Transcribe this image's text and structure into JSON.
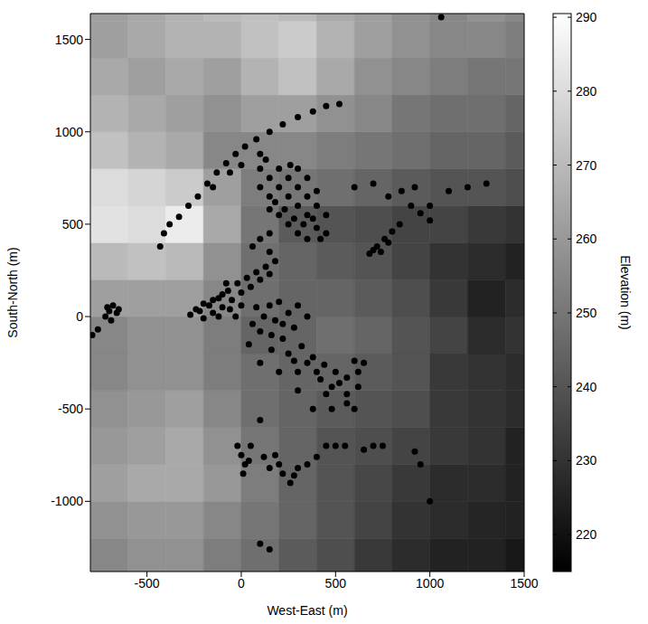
{
  "chart_data": {
    "type": "scatter",
    "xlabel": "West-East (m)",
    "ylabel": "South-North (m)",
    "xlim": [
      -800,
      1500
    ],
    "ylim": [
      -1380,
      1640
    ],
    "xticks": [
      -500,
      0,
      500,
      1000,
      1500
    ],
    "yticks": [
      -1000,
      -500,
      0,
      500,
      1000,
      1500
    ],
    "grid": false,
    "color": "#000000",
    "marker": "circle",
    "points": [
      [
        -720,
        0
      ],
      [
        -700,
        30
      ],
      [
        -680,
        60
      ],
      [
        -660,
        20
      ],
      [
        -690,
        -20
      ],
      [
        -650,
        40
      ],
      [
        -710,
        50
      ],
      [
        -760,
        -70
      ],
      [
        -790,
        -100
      ],
      [
        -430,
        380
      ],
      [
        -410,
        450
      ],
      [
        -380,
        500
      ],
      [
        -330,
        540
      ],
      [
        -280,
        600
      ],
      [
        -230,
        650
      ],
      [
        -180,
        720
      ],
      [
        -130,
        780
      ],
      [
        -80,
        830
      ],
      [
        -30,
        880
      ],
      [
        20,
        920
      ],
      [
        80,
        960
      ],
      [
        150,
        1000
      ],
      [
        220,
        1040
      ],
      [
        300,
        1080
      ],
      [
        380,
        1110
      ],
      [
        450,
        1140
      ],
      [
        520,
        1150
      ],
      [
        0,
        820
      ],
      [
        100,
        880
      ],
      [
        -150,
        700
      ],
      [
        -60,
        780
      ],
      [
        100,
        800
      ],
      [
        150,
        750
      ],
      [
        200,
        700
      ],
      [
        250,
        650
      ],
      [
        300,
        600
      ],
      [
        350,
        550
      ],
      [
        400,
        480
      ],
      [
        450,
        450
      ],
      [
        150,
        650
      ],
      [
        200,
        550
      ],
      [
        250,
        500
      ],
      [
        300,
        450
      ],
      [
        350,
        420
      ],
      [
        200,
        800
      ],
      [
        250,
        750
      ],
      [
        300,
        700
      ],
      [
        350,
        650
      ],
      [
        400,
        600
      ],
      [
        450,
        550
      ],
      [
        300,
        800
      ],
      [
        350,
        750
      ],
      [
        400,
        680
      ],
      [
        100,
        700
      ],
      [
        150,
        580
      ],
      [
        180,
        620
      ],
      [
        230,
        580
      ],
      [
        280,
        530
      ],
      [
        330,
        500
      ],
      [
        380,
        530
      ],
      [
        420,
        420
      ],
      [
        260,
        820
      ],
      [
        130,
        850
      ],
      [
        680,
        340
      ],
      [
        720,
        380
      ],
      [
        760,
        420
      ],
      [
        800,
        460
      ],
      [
        840,
        500
      ],
      [
        740,
        350
      ],
      [
        700,
        360
      ],
      [
        780,
        400
      ],
      [
        600,
        700
      ],
      [
        700,
        720
      ],
      [
        780,
        650
      ],
      [
        850,
        680
      ],
      [
        900,
        600
      ],
      [
        950,
        560
      ],
      [
        1000,
        600
      ],
      [
        1100,
        680
      ],
      [
        1200,
        700
      ],
      [
        1300,
        720
      ],
      [
        920,
        700
      ],
      [
        1000,
        520
      ],
      [
        150,
        450
      ],
      [
        100,
        420
      ],
      [
        150,
        350
      ],
      [
        60,
        380
      ],
      [
        -270,
        10
      ],
      [
        -220,
        30
      ],
      [
        -170,
        60
      ],
      [
        -120,
        100
      ],
      [
        -70,
        140
      ],
      [
        -20,
        180
      ],
      [
        30,
        210
      ],
      [
        80,
        240
      ],
      [
        130,
        270
      ],
      [
        180,
        300
      ],
      [
        -200,
        -10
      ],
      [
        -150,
        20
      ],
      [
        -100,
        50
      ],
      [
        -50,
        90
      ],
      [
        0,
        130
      ],
      [
        50,
        160
      ],
      [
        -150,
        90
      ],
      [
        -80,
        180
      ],
      [
        -30,
        0
      ],
      [
        0,
        60
      ],
      [
        -100,
        120
      ],
      [
        -200,
        70
      ],
      [
        -240,
        40
      ],
      [
        -60,
        40
      ],
      [
        -120,
        0
      ],
      [
        100,
        200
      ],
      [
        150,
        230
      ],
      [
        80,
        50
      ],
      [
        150,
        60
      ],
      [
        200,
        80
      ],
      [
        120,
        0
      ],
      [
        180,
        -20
      ],
      [
        250,
        20
      ],
      [
        300,
        60
      ],
      [
        100,
        -80
      ],
      [
        160,
        -100
      ],
      [
        220,
        -120
      ],
      [
        280,
        -60
      ],
      [
        320,
        -160
      ],
      [
        380,
        -220
      ],
      [
        440,
        -260
      ],
      [
        500,
        -300
      ],
      [
        560,
        -330
      ],
      [
        620,
        -300
      ],
      [
        620,
        -380
      ],
      [
        560,
        -420
      ],
      [
        480,
        -380
      ],
      [
        400,
        -300
      ],
      [
        350,
        -250
      ],
      [
        250,
        -200
      ],
      [
        300,
        -300
      ],
      [
        650,
        -250
      ],
      [
        40,
        -150
      ],
      [
        100,
        -250
      ],
      [
        200,
        -300
      ],
      [
        450,
        -420
      ],
      [
        60,
        -40
      ],
      [
        220,
        -40
      ],
      [
        350,
        0
      ],
      [
        160,
        -180
      ],
      [
        280,
        -240
      ],
      [
        420,
        -340
      ],
      [
        520,
        -360
      ],
      [
        600,
        -240
      ],
      [
        380,
        -500
      ],
      [
        480,
        -500
      ],
      [
        600,
        -500
      ],
      [
        100,
        -560
      ],
      [
        300,
        -400
      ],
      [
        560,
        -470
      ],
      [
        -20,
        -700
      ],
      [
        0,
        -750
      ],
      [
        20,
        -800
      ],
      [
        10,
        -850
      ],
      [
        50,
        -700
      ],
      [
        120,
        -760
      ],
      [
        150,
        -820
      ],
      [
        180,
        -750
      ],
      [
        220,
        -850
      ],
      [
        260,
        -900
      ],
      [
        300,
        -820
      ],
      [
        350,
        -800
      ],
      [
        400,
        -760
      ],
      [
        450,
        -700
      ],
      [
        500,
        -700
      ],
      [
        550,
        -700
      ],
      [
        650,
        -720
      ],
      [
        700,
        -700
      ],
      [
        750,
        -700
      ],
      [
        40,
        -780
      ],
      [
        200,
        -800
      ],
      [
        280,
        -860
      ],
      [
        920,
        -730
      ],
      [
        950,
        -800
      ],
      [
        1000,
        -1000
      ],
      [
        100,
        -1230
      ],
      [
        150,
        -1260
      ],
      [
        1060,
        1620
      ]
    ],
    "elevation": {
      "x_edges": [
        -800,
        -600,
        -400,
        -200,
        0,
        200,
        400,
        600,
        800,
        1000,
        1200,
        1400,
        1500
      ],
      "y_edges": [
        -1380,
        -1200,
        -1000,
        -800,
        -600,
        -400,
        -200,
        0,
        200,
        400,
        600,
        800,
        1000,
        1200,
        1400,
        1600,
        1640
      ],
      "values": [
        [
          255,
          258,
          258,
          252,
          248,
          242,
          238,
          232,
          228,
          225,
          225,
          222
        ],
        [
          258,
          260,
          260,
          255,
          250,
          245,
          240,
          235,
          230,
          228,
          226,
          225
        ],
        [
          262,
          265,
          265,
          260,
          252,
          245,
          240,
          236,
          232,
          228,
          228,
          225
        ],
        [
          260,
          262,
          265,
          258,
          250,
          245,
          240,
          238,
          235,
          232,
          230,
          225
        ],
        [
          258,
          260,
          262,
          255,
          248,
          245,
          242,
          240,
          238,
          232,
          230,
          228
        ],
        [
          255,
          258,
          258,
          252,
          248,
          245,
          245,
          242,
          240,
          232,
          230,
          228
        ],
        [
          255,
          258,
          258,
          252,
          245,
          245,
          248,
          245,
          240,
          235,
          228,
          230
        ],
        [
          262,
          262,
          262,
          255,
          248,
          245,
          245,
          242,
          238,
          232,
          225,
          228
        ],
        [
          270,
          272,
          270,
          258,
          248,
          245,
          242,
          240,
          235,
          230,
          228,
          225
        ],
        [
          282,
          280,
          285,
          265,
          250,
          242,
          240,
          238,
          235,
          235,
          232,
          230
        ],
        [
          280,
          278,
          275,
          262,
          252,
          250,
          248,
          245,
          242,
          240,
          240,
          238
        ],
        [
          272,
          268,
          265,
          255,
          255,
          255,
          252,
          250,
          248,
          245,
          245,
          242
        ],
        [
          268,
          265,
          262,
          258,
          262,
          262,
          258,
          255,
          250,
          248,
          248,
          245
        ],
        [
          265,
          262,
          265,
          262,
          268,
          272,
          265,
          258,
          255,
          252,
          250,
          250
        ],
        [
          262,
          265,
          268,
          268,
          272,
          275,
          268,
          262,
          258,
          255,
          255,
          252
        ],
        [
          262,
          265,
          268,
          270,
          272,
          270,
          265,
          262,
          258,
          255,
          258,
          255
        ]
      ]
    },
    "colorbar": {
      "label": "Elevation (m)",
      "range": [
        215,
        290.5
      ],
      "ticks": [
        220,
        230,
        240,
        250,
        260,
        270,
        280,
        290
      ]
    }
  }
}
